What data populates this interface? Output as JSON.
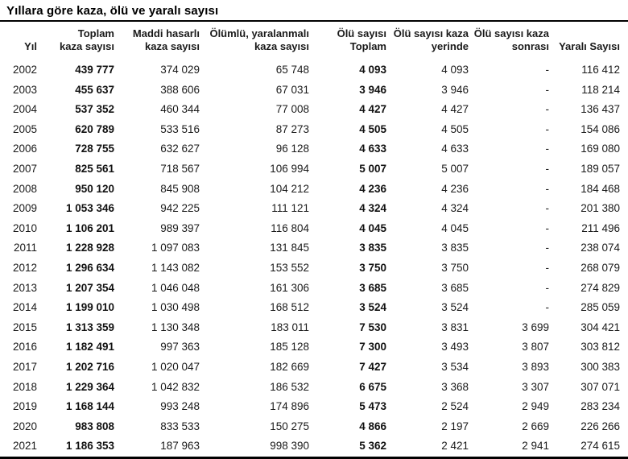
{
  "title": "Yıllara göre kaza, ölü ve yaralı sayısı",
  "colors": {
    "background": "#ffffff",
    "text": "#1a1a1a",
    "title_text": "#000000",
    "rule": "#000000"
  },
  "chart_data": {
    "type": "table",
    "title": "Yıllara göre kaza, ölü ve yaralı sayısı",
    "headers": [
      "Yıl",
      "Toplam\nkaza sayısı",
      "Maddi hasarlı\nkaza sayısı",
      "Ölümlü, yaralanmalı\nkaza sayısı",
      "Ölü sayısı\nToplam",
      "Ölü sayısı kaza\nyerinde",
      "Ölü sayısı kaza\nsonrası",
      "Yaralı Sayısı"
    ],
    "column_keys": [
      "year",
      "total-accidents",
      "material-damage-accidents",
      "death-injury-accidents",
      "deaths-total",
      "deaths-at-scene",
      "deaths-after-accident",
      "injured"
    ],
    "bold_columns": [
      1,
      4
    ],
    "rows": [
      [
        "2002",
        "439 777",
        "374 029",
        "65 748",
        "4 093",
        "4 093",
        "-",
        "116 412"
      ],
      [
        "2003",
        "455 637",
        "388 606",
        "67 031",
        "3 946",
        "3 946",
        "-",
        "118 214"
      ],
      [
        "2004",
        "537 352",
        "460 344",
        "77 008",
        "4 427",
        "4 427",
        "-",
        "136 437"
      ],
      [
        "2005",
        "620 789",
        "533 516",
        "87 273",
        "4 505",
        "4 505",
        "-",
        "154 086"
      ],
      [
        "2006",
        "728 755",
        "632 627",
        "96 128",
        "4 633",
        "4 633",
        "-",
        "169 080"
      ],
      [
        "2007",
        "825 561",
        "718 567",
        "106 994",
        "5 007",
        "5 007",
        "-",
        "189 057"
      ],
      [
        "2008",
        "950 120",
        "845 908",
        "104 212",
        "4 236",
        "4 236",
        "-",
        "184 468"
      ],
      [
        "2009",
        "1 053 346",
        "942 225",
        "111 121",
        "4 324",
        "4 324",
        "-",
        "201 380"
      ],
      [
        "2010",
        "1 106 201",
        "989 397",
        "116 804",
        "4 045",
        "4 045",
        "-",
        "211 496"
      ],
      [
        "2011",
        "1 228 928",
        "1 097 083",
        "131 845",
        "3 835",
        "3 835",
        "-",
        "238 074"
      ],
      [
        "2012",
        "1 296 634",
        "1 143 082",
        "153 552",
        "3 750",
        "3 750",
        "-",
        "268 079"
      ],
      [
        "2013",
        "1 207 354",
        "1 046 048",
        "161 306",
        "3 685",
        "3 685",
        "-",
        "274 829"
      ],
      [
        "2014",
        "1 199 010",
        "1 030 498",
        "168 512",
        "3 524",
        "3 524",
        "-",
        "285 059"
      ],
      [
        "2015",
        "1 313 359",
        "1 130 348",
        "183 011",
        "7 530",
        "3 831",
        "3 699",
        "304 421"
      ],
      [
        "2016",
        "1 182 491",
        "997 363",
        "185 128",
        "7 300",
        "3 493",
        "3 807",
        "303 812"
      ],
      [
        "2017",
        "1 202 716",
        "1 020 047",
        "182 669",
        "7 427",
        "3 534",
        "3 893",
        "300 383"
      ],
      [
        "2018",
        "1 229 364",
        "1 042 832",
        "186 532",
        "6 675",
        "3 368",
        "3 307",
        "307 071"
      ],
      [
        "2019",
        "1 168 144",
        "993 248",
        "174 896",
        "5 473",
        "2 524",
        "2 949",
        "283 234"
      ],
      [
        "2020",
        "983 808",
        "833 533",
        "150 275",
        "4 866",
        "2 197",
        "2 669",
        "226 266"
      ],
      [
        "2021",
        "1 186 353",
        "187 963",
        "998 390",
        "5 362",
        "2 421",
        "2 941",
        "274 615"
      ]
    ]
  }
}
